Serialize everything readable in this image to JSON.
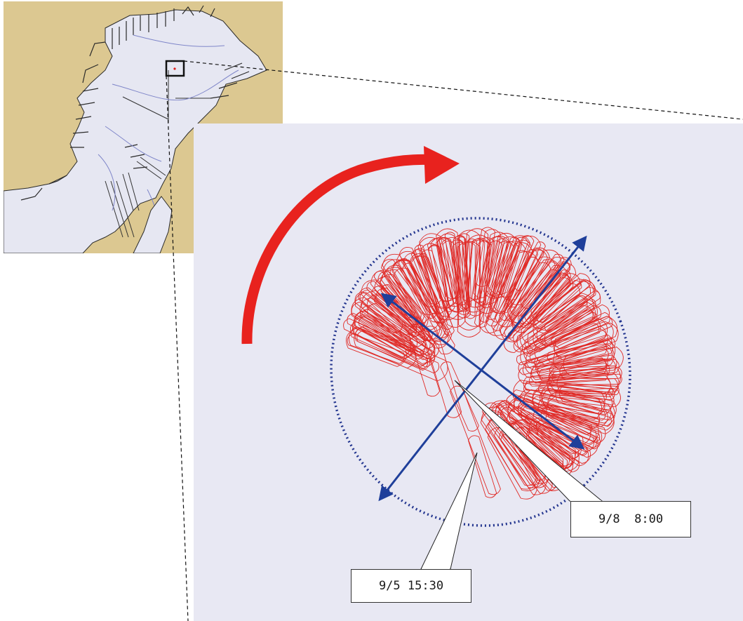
{
  "colors": {
    "land": "#dcc891",
    "water": "#e6e7f2",
    "panel_bg": "#e8e8f3",
    "track": "#e0201c",
    "arrow": "#e8221e",
    "measure": "#1f3f9a",
    "circle": "#23358f",
    "coast": "#2a2a2a",
    "channel": "#7f86c9"
  },
  "icons": {
    "rotation": "curved-arrow-icon",
    "measure": "double-arrow-icon",
    "selection": "square-outline-icon"
  },
  "annotations": {
    "end_time": "9/8  8:00",
    "start_time": "9/5 15:30"
  }
}
